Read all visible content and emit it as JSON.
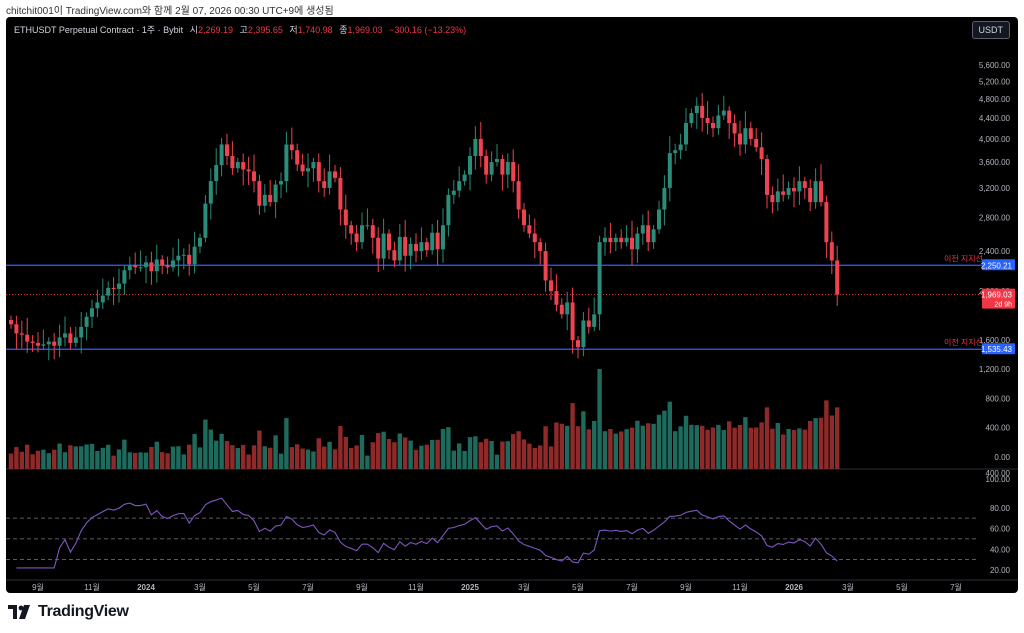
{
  "caption": "chitchit001이 TradingView.com와 함께 2월 07, 2026 00:30 UTC+9에 생성됨",
  "header": {
    "symbol": "ETHUSDT Perpetual Contract · 1주 · Bybit",
    "open_label": "시",
    "open": "2,269.19",
    "high_label": "고",
    "high": "2,395.65",
    "low_label": "저",
    "low": "1,740.98",
    "close_label": "종",
    "close": "1,969.03",
    "change": "−300.16 (−13.23%)"
  },
  "currency_button": "USDT",
  "brand": "TradingView",
  "colors": {
    "up": "#2a8c79",
    "down": "#ef4351",
    "vol_up": "#1e6b5e",
    "vol_down": "#8f2a2a",
    "support": "#2962ff",
    "rsi": "#7e57c2",
    "background": "#000000"
  },
  "chart_data": {
    "type": "candlestick",
    "interval": "1W",
    "price_axis": {
      "ticks": [
        "5,600.00",
        "5,200.00",
        "4,800.00",
        "4,400.00",
        "4,000.00",
        "3,600.00",
        "3,200.00",
        "2,800.00",
        "2,400.00",
        "2,000.00",
        "1,600.00"
      ],
      "ylim": [
        1400,
        6000
      ],
      "scale": "log"
    },
    "volume_axis": {
      "ticks": [
        "1,200.00",
        "800.00",
        "400.00",
        "0.00"
      ]
    },
    "rsi_axis": {
      "ticks": [
        "80.00",
        "60.00",
        "40.00",
        "20.00"
      ],
      "ylim": [
        20,
        100
      ],
      "bands": [
        70,
        50,
        30
      ]
    },
    "x_axis": {
      "ticks": [
        "9월",
        "11월",
        "2024",
        "3월",
        "5월",
        "7월",
        "9월",
        "11월",
        "2025",
        "3월",
        "5월",
        "7월",
        "9월",
        "11월",
        "2026",
        "3월",
        "5월",
        "7월"
      ]
    },
    "price_levels": [
      {
        "label": "이전 지지선",
        "value": 2250.21,
        "tag": "2,250.21"
      },
      {
        "label": "이전 지지선",
        "value": 1535.43,
        "tag": "1,535.43"
      }
    ],
    "last_price": {
      "value": 1969.03,
      "tag": "1,969.03",
      "countdown": "2d 9h"
    },
    "volume_partial_tick": "400.00",
    "rsi_partial_tick": "100.00",
    "closes": [
      1720,
      1650,
      1640,
      1590,
      1580,
      1560,
      1570,
      1590,
      1560,
      1620,
      1650,
      1580,
      1620,
      1700,
      1780,
      1850,
      1900,
      1960,
      2030,
      2020,
      2070,
      2200,
      2250,
      2230,
      2230,
      2280,
      2190,
      2310,
      2250,
      2230,
      2300,
      2350,
      2360,
      2260,
      2450,
      2550,
      2980,
      3300,
      3550,
      3900,
      3700,
      3500,
      3600,
      3480,
      3450,
      3300,
      2950,
      3100,
      3000,
      3250,
      3300,
      3900,
      3800,
      3560,
      3450,
      3500,
      3600,
      3300,
      3200,
      3450,
      3350,
      2900,
      2700,
      2600,
      2500,
      2700,
      2700,
      2550,
      2320,
      2600,
      2410,
      2300,
      2560,
      2350,
      2480,
      2400,
      2500,
      2410,
      2610,
      2420,
      2700,
      3100,
      3160,
      3300,
      3400,
      3700,
      4000,
      3700,
      3400,
      3600,
      3650,
      3400,
      3600,
      3300,
      2900,
      2700,
      2600,
      2500,
      2400,
      2100,
      2000,
      1880,
      1800,
      1900,
      1600,
      1550,
      1750,
      1700,
      1800,
      2500,
      2550,
      2500,
      2550,
      2500,
      2550,
      2420,
      2600,
      2700,
      2500,
      2650,
      2900,
      3200,
      3750,
      3800,
      3900,
      4300,
      4500,
      4650,
      4400,
      4300,
      4200,
      4450,
      4550,
      4300,
      4100,
      3900,
      4200,
      4000,
      3850,
      3650,
      3100,
      3000,
      3150,
      3100,
      3200,
      3150,
      3300,
      3200,
      3000,
      3300,
      3000,
      2500,
      2300,
      1969
    ]
  }
}
